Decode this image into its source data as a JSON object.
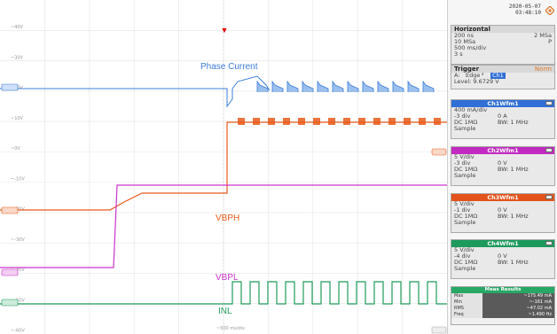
{
  "screen": {
    "timestamp_date": "2020-05-07",
    "timestamp_time": "03:48:10"
  },
  "plot": {
    "trigger_marker": "▼",
    "left_scale_labels": [
      "~40V",
      "~30V",
      "~20V",
      "~10V",
      "~0V",
      "~-10V",
      "~-20V",
      "~-30V",
      "~-40V",
      "~-50V",
      "~-60V"
    ],
    "bottom_time_label": "~500 ms/div",
    "traces": {
      "ch1": {
        "label": "Phase Current",
        "color": "#3b7dd8"
      },
      "ch2": {
        "label": "VBPL",
        "color": "#cc33cc"
      },
      "ch3": {
        "label": "VBPH",
        "color": "#e85a1a"
      },
      "ch4": {
        "label": "INL",
        "color": "#1f9b5a"
      }
    },
    "edge_markers": {
      "c1": "1",
      "c2": "2",
      "c3": "3",
      "c4": "4"
    }
  },
  "horizontal": {
    "title": "Horizontal",
    "rows": [
      {
        "left": "200 ns",
        "right": "2 MSa"
      },
      {
        "left": "10 MSa",
        "right": "P"
      },
      {
        "left": "500 ms/div",
        "right": ""
      },
      {
        "left": "3 s",
        "right": ""
      }
    ]
  },
  "trigger": {
    "title": "Trigger",
    "mode": "Norm",
    "source": "A:",
    "type": "Edge",
    "edge_symbol": "ᶠ",
    "channel": "Ch1",
    "level": "Level: 9.6729 V"
  },
  "channels": [
    {
      "name": "Ch1Wfm1",
      "color": "#2f6fd6",
      "scale": "400 mA/div",
      "offset": "-3 div",
      "offset_val": "0 A",
      "coupling": "DC 1MΩ",
      "bw": "BW: 1 MHz",
      "mode": "Sample"
    },
    {
      "name": "Ch2Wfm1",
      "color": "#c12bc1",
      "scale": "5 V/div",
      "offset": "-3 div",
      "offset_val": "0 V",
      "coupling": "DC 1MΩ",
      "bw": "BW: 1 MHz",
      "mode": "Sample"
    },
    {
      "name": "Ch3Wfm1",
      "color": "#e3531b",
      "scale": "5 V/div",
      "offset": "-1 div",
      "offset_val": "0 V",
      "coupling": "DC 1MΩ",
      "bw": "BW: 1 MHz",
      "mode": "Sample"
    },
    {
      "name": "Ch4Wfm1",
      "color": "#1c9a5c",
      "scale": "5 V/div",
      "offset": "-4 div",
      "offset_val": "0 V",
      "coupling": "DC 1MΩ",
      "bw": "BW: 1 MHz",
      "mode": "Sample"
    }
  ],
  "meas": {
    "title": "Meas Results",
    "rows": [
      {
        "k": "Max",
        "v": "~175.49 mA"
      },
      {
        "k": "Min",
        "v": "~-161 mA"
      },
      {
        "k": "RMS",
        "v": "~47.02 mA"
      },
      {
        "k": "Freq",
        "v": "~1.490 Hz"
      }
    ]
  }
}
